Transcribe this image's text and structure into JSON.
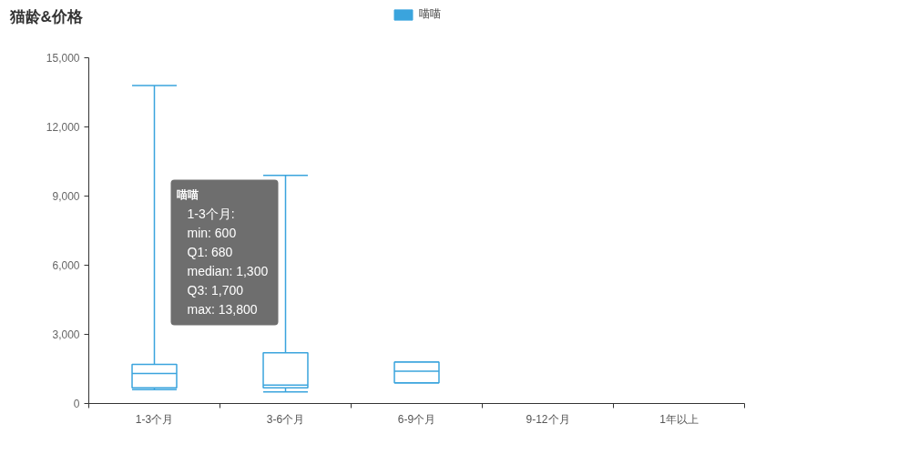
{
  "chart_data": {
    "type": "box",
    "title": "猫龄&价格",
    "categories": [
      "1-3个月",
      "3-6个月",
      "6-9个月",
      "9-12个月",
      "1年以上"
    ],
    "series": [
      {
        "name": "喵喵",
        "color": "#3aa4dd",
        "boxes": [
          {
            "low": 600,
            "q1": 680,
            "median": 1300,
            "q3": 1700,
            "high": 13800
          },
          {
            "low": 500,
            "q1": 680,
            "median": 800,
            "q3": 2200,
            "high": 9900
          },
          {
            "low": 900,
            "q1": 900,
            "median": 1400,
            "q3": 1800,
            "high": 1800
          },
          null,
          null
        ]
      }
    ],
    "ylim": [
      0,
      15000
    ],
    "yticks": [
      0,
      {
        "value": 3000,
        "label": "3,000"
      },
      {
        "value": 6000,
        "label": "6,000"
      },
      {
        "value": 9000,
        "label": "9,000"
      },
      {
        "value": 12000,
        "label": "12,000"
      },
      {
        "value": 15000,
        "label": "15,000"
      }
    ],
    "grid": false,
    "legend": "top",
    "annotations": [
      "喵喵",
      "1-3个月:",
      "min: 600",
      "Q1: 680",
      "median: 1,300",
      "Q3: 1,700",
      "max: 13,800"
    ]
  }
}
